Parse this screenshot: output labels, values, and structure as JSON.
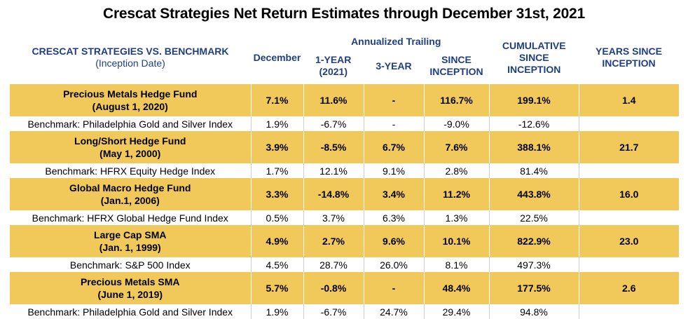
{
  "title": "Crescat Strategies Net Return Estimates through December 31st, 2021",
  "header": {
    "group_label": "Annualized Trailing",
    "col0_line1": "CRESCAT STRATEGIES VS. BENCHMARK",
    "col0_line2": "(Inception Date)",
    "december": "December",
    "one_year_line1": "1-YEAR",
    "one_year_line2": "(2021)",
    "three_year": "3-YEAR",
    "since_line1": "SINCE",
    "since_line2": "INCEPTION",
    "cum_line1": "CUMULATIVE",
    "cum_line2": "SINCE",
    "cum_line3": "INCEPTION",
    "years_line1": "YEARS SINCE",
    "years_line2": "INCEPTION"
  },
  "rows": [
    {
      "fund": {
        "name": "Precious Metals Hedge Fund",
        "date": "(August 1, 2020)",
        "december": "7.1%",
        "one_year": "11.6%",
        "three_year": "-",
        "since": "116.7%",
        "cumulative": "199.1%",
        "years": "1.4"
      },
      "bench": {
        "name": "Benchmark: Philadelphia Gold and Silver Index",
        "december": "1.9%",
        "one_year": "-6.7%",
        "three_year": "-",
        "since": "-9.0%",
        "cumulative": "-12.6%"
      }
    },
    {
      "fund": {
        "name": "Long/Short Hedge Fund",
        "date": "(May 1, 2000)",
        "december": "3.9%",
        "one_year": "-8.5%",
        "three_year": "6.7%",
        "since": "7.6%",
        "cumulative": "388.1%",
        "years": "21.7"
      },
      "bench": {
        "name": "Benchmark: HFRX Equity Hedge Index",
        "december": "1.7%",
        "one_year": "12.1%",
        "three_year": "9.1%",
        "since": "2.8%",
        "cumulative": "81.4%"
      }
    },
    {
      "fund": {
        "name": "Global Macro Hedge Fund",
        "date": "(Jan.1, 2006)",
        "december": "3.3%",
        "one_year": "-14.8%",
        "three_year": "3.4%",
        "since": "11.2%",
        "cumulative": "443.8%",
        "years": "16.0"
      },
      "bench": {
        "name": "Benchmark: HFRX Global Hedge Fund Index",
        "december": "0.5%",
        "one_year": "3.7%",
        "three_year": "6.3%",
        "since": "1.3%",
        "cumulative": "22.5%"
      }
    },
    {
      "fund": {
        "name": "Large Cap SMA",
        "date": "(Jan. 1, 1999)",
        "december": "4.9%",
        "one_year": "2.7%",
        "three_year": "9.6%",
        "since": "10.1%",
        "cumulative": "822.9%",
        "years": "23.0"
      },
      "bench": {
        "name": "Benchmark: S&P 500 Index",
        "december": "4.5%",
        "one_year": "28.7%",
        "three_year": "26.0%",
        "since": "8.1%",
        "cumulative": "497.3%"
      }
    },
    {
      "fund": {
        "name": "Precious Metals SMA",
        "date": "(June 1, 2019)",
        "december": "5.7%",
        "one_year": "-0.8%",
        "three_year": "-",
        "since": "48.4%",
        "cumulative": "177.5%",
        "years": "2.6"
      },
      "bench": {
        "name": "Benchmark: Philadelphia Gold and Silver Index",
        "december": "1.9%",
        "one_year": "-6.7%",
        "three_year": "24.7%",
        "since": "29.4%",
        "cumulative": "94.8%"
      }
    }
  ]
}
